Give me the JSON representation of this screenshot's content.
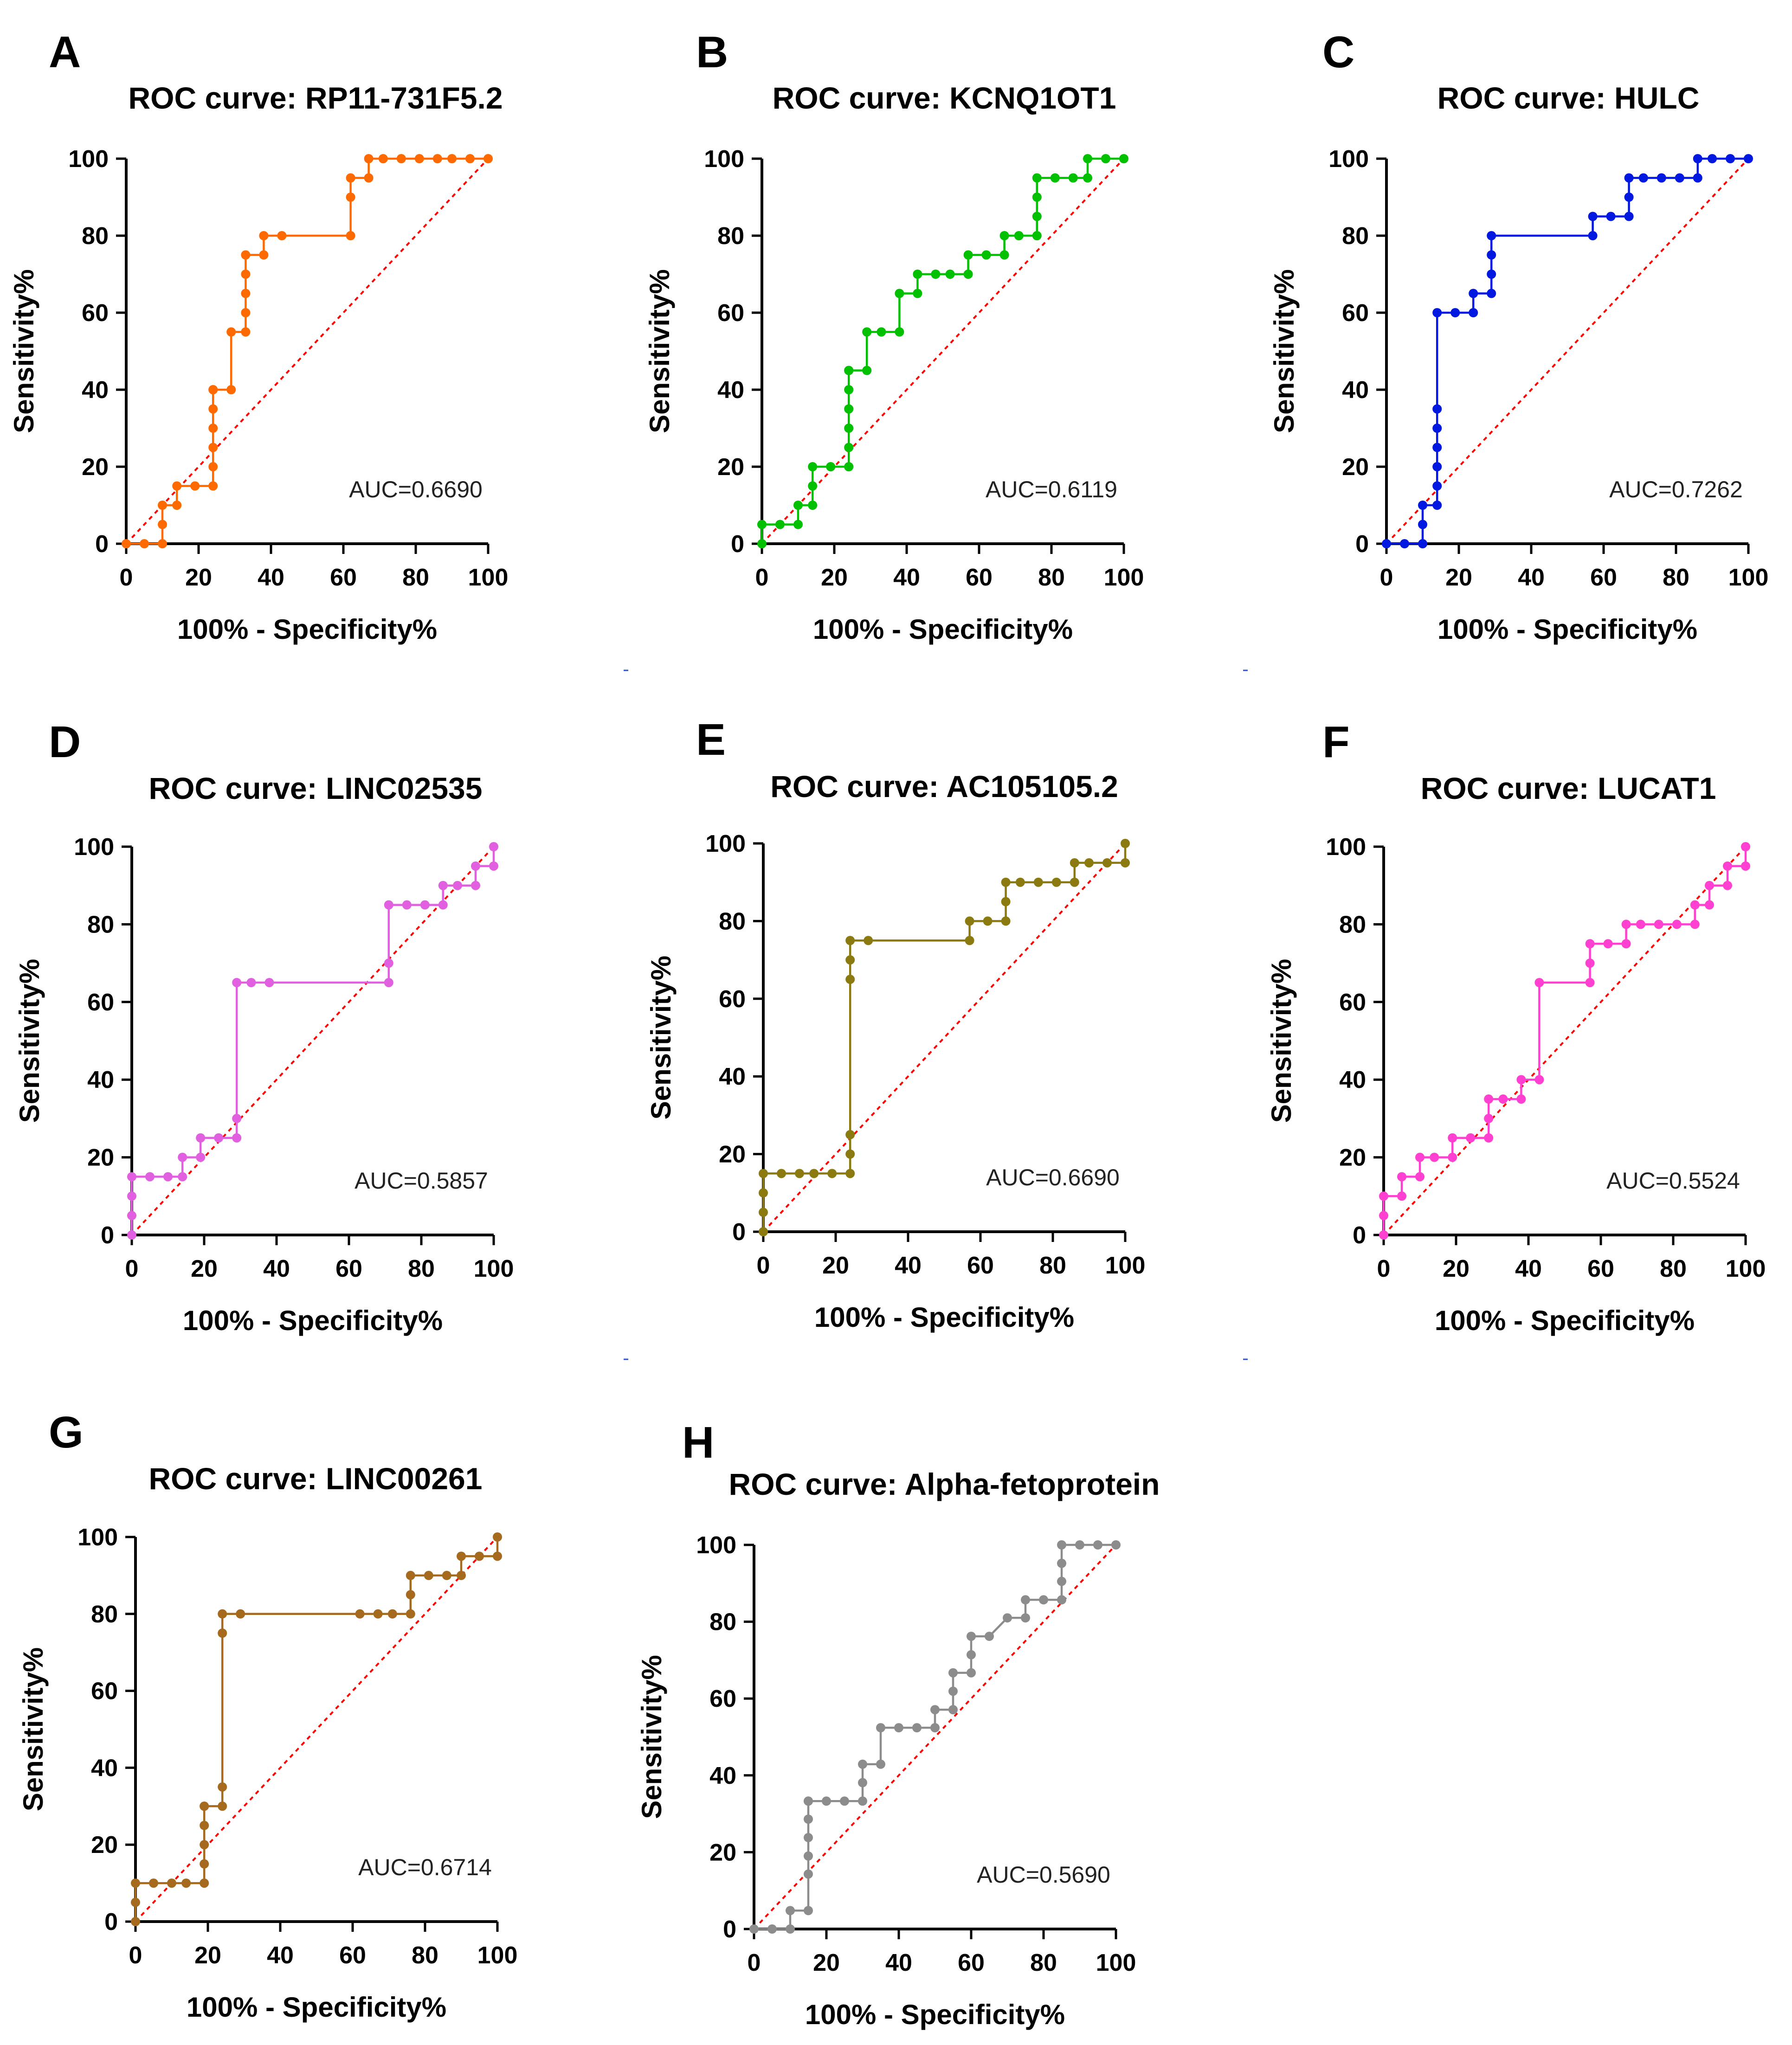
{
  "figure": {
    "x_axis_label": "100% - Specificity%",
    "y_axis_label": "Sensitivity%",
    "ticks": [
      "0",
      "20",
      "40",
      "60",
      "80",
      "100"
    ]
  },
  "chart_data": [
    {
      "type": "line",
      "panel": "A",
      "title": "ROC curve: RP11-731F5.2",
      "auc_label": "AUC=0.6690",
      "color": "#FF6A00",
      "xlabel": "100% - Specificity%",
      "ylabel": "Sensitivity%",
      "xlim": [
        0,
        100
      ],
      "ylim": [
        0,
        100
      ],
      "reference_line": {
        "color": "#FF0000",
        "style": "dotted",
        "from": [
          0,
          0
        ],
        "to": [
          100,
          100
        ]
      },
      "series": [
        {
          "name": "RP11-731F5.2",
          "x": [
            0,
            5,
            10,
            10,
            10,
            14,
            14,
            19,
            24,
            24,
            24,
            24,
            24,
            24,
            24,
            29,
            29,
            33,
            33,
            33,
            33,
            33,
            38,
            38,
            43,
            62,
            62,
            62,
            67,
            67,
            71,
            76,
            81,
            86,
            90,
            95,
            100
          ],
          "y": [
            0,
            0,
            0,
            5,
            10,
            10,
            15,
            15,
            15,
            20,
            25,
            30,
            35,
            40,
            40,
            40,
            55,
            55,
            60,
            65,
            70,
            75,
            75,
            80,
            80,
            80,
            90,
            95,
            95,
            100,
            100,
            100,
            100,
            100,
            100,
            100,
            100
          ]
        }
      ]
    },
    {
      "type": "line",
      "panel": "B",
      "title": "ROC curve: KCNQ1OT1",
      "auc_label": "AUC=0.6119",
      "color": "#00C000",
      "xlabel": "100% - Specificity%",
      "ylabel": "Sensitivity%",
      "xlim": [
        0,
        100
      ],
      "ylim": [
        0,
        100
      ],
      "reference_line": {
        "color": "#FF0000",
        "style": "dotted",
        "from": [
          0,
          0
        ],
        "to": [
          100,
          100
        ]
      },
      "series": [
        {
          "name": "KCNQ1OT1",
          "x": [
            0,
            0,
            5,
            10,
            10,
            14,
            14,
            14,
            19,
            24,
            24,
            24,
            24,
            24,
            24,
            24,
            29,
            29,
            33,
            38,
            38,
            43,
            43,
            48,
            52,
            57,
            57,
            62,
            67,
            67,
            71,
            76,
            76,
            76,
            76,
            81,
            86,
            90,
            90,
            95,
            100
          ],
          "y": [
            0,
            5,
            5,
            5,
            10,
            10,
            15,
            20,
            20,
            20,
            25,
            30,
            35,
            40,
            45,
            45,
            45,
            55,
            55,
            55,
            65,
            65,
            70,
            70,
            70,
            70,
            75,
            75,
            75,
            80,
            80,
            80,
            85,
            90,
            95,
            95,
            95,
            95,
            100,
            100,
            100
          ]
        }
      ]
    },
    {
      "type": "line",
      "panel": "C",
      "title": "ROC curve: HULC",
      "auc_label": "AUC=0.7262",
      "color": "#0018E0",
      "xlabel": "100% - Specificity%",
      "ylabel": "Sensitivity%",
      "xlim": [
        0,
        100
      ],
      "ylim": [
        0,
        100
      ],
      "reference_line": {
        "color": "#FF0000",
        "style": "dotted",
        "from": [
          0,
          0
        ],
        "to": [
          100,
          100
        ]
      },
      "series": [
        {
          "name": "HULC",
          "x": [
            0,
            5,
            10,
            10,
            10,
            14,
            14,
            14,
            14,
            14,
            14,
            14,
            19,
            24,
            24,
            29,
            29,
            29,
            29,
            57,
            57,
            62,
            67,
            67,
            67,
            71,
            76,
            81,
            86,
            86,
            90,
            95,
            100
          ],
          "y": [
            0,
            0,
            0,
            5,
            10,
            10,
            15,
            20,
            25,
            30,
            35,
            60,
            60,
            60,
            65,
            65,
            70,
            75,
            80,
            80,
            85,
            85,
            85,
            90,
            95,
            95,
            95,
            95,
            95,
            100,
            100,
            100,
            100
          ]
        }
      ]
    },
    {
      "type": "line",
      "panel": "D",
      "title": "ROC curve: LINC02535",
      "auc_label": "AUC=0.5857",
      "color": "#E060E0",
      "xlabel": "100% - Specificity%",
      "ylabel": "Sensitivity%",
      "xlim": [
        0,
        100
      ],
      "ylim": [
        0,
        100
      ],
      "reference_line": {
        "color": "#FF0000",
        "style": "dotted",
        "from": [
          0,
          0
        ],
        "to": [
          100,
          100
        ]
      },
      "series": [
        {
          "name": "LINC02535",
          "x": [
            0,
            0,
            0,
            0,
            5,
            10,
            14,
            14,
            19,
            19,
            24,
            29,
            29,
            29,
            33,
            38,
            71,
            71,
            71,
            76,
            81,
            86,
            86,
            90,
            95,
            95,
            100,
            100
          ],
          "y": [
            0,
            5,
            10,
            15,
            15,
            15,
            15,
            20,
            20,
            25,
            25,
            25,
            30,
            65,
            65,
            65,
            65,
            70,
            85,
            85,
            85,
            85,
            90,
            90,
            90,
            95,
            95,
            100
          ]
        }
      ]
    },
    {
      "type": "line",
      "panel": "E",
      "title": "ROC curve: AC105105.2",
      "auc_label": "AUC=0.6690",
      "color": "#8A7A10",
      "xlabel": "100% - Specificity%",
      "ylabel": "Sensitivity%",
      "xlim": [
        0,
        100
      ],
      "ylim": [
        0,
        100
      ],
      "reference_line": {
        "color": "#FF0000",
        "style": "dotted",
        "from": [
          0,
          0
        ],
        "to": [
          100,
          100
        ]
      },
      "series": [
        {
          "name": "AC105105.2",
          "x": [
            0,
            0,
            0,
            0,
            5,
            10,
            14,
            19,
            24,
            24,
            24,
            24,
            24,
            24,
            29,
            57,
            57,
            62,
            67,
            67,
            67,
            71,
            76,
            81,
            86,
            86,
            90,
            95,
            100,
            100
          ],
          "y": [
            0,
            5,
            10,
            15,
            15,
            15,
            15,
            15,
            15,
            20,
            25,
            65,
            70,
            75,
            75,
            75,
            80,
            80,
            80,
            85,
            90,
            90,
            90,
            90,
            90,
            95,
            95,
            95,
            95,
            100
          ]
        }
      ]
    },
    {
      "type": "line",
      "panel": "F",
      "title": "ROC curve: LUCAT1",
      "auc_label": "AUC=0.5524",
      "color": "#FF40D0",
      "xlabel": "100% - Specificity%",
      "ylabel": "Sensitivity%",
      "xlim": [
        0,
        100
      ],
      "ylim": [
        0,
        100
      ],
      "reference_line": {
        "color": "#FF0000",
        "style": "dotted",
        "from": [
          0,
          0
        ],
        "to": [
          100,
          100
        ]
      },
      "series": [
        {
          "name": "LUCAT1",
          "x": [
            0,
            0,
            0,
            5,
            5,
            10,
            10,
            14,
            19,
            19,
            24,
            29,
            29,
            29,
            33,
            38,
            38,
            43,
            43,
            57,
            57,
            57,
            62,
            67,
            67,
            71,
            76,
            81,
            86,
            86,
            90,
            90,
            95,
            95,
            100,
            100
          ],
          "y": [
            0,
            5,
            10,
            10,
            15,
            15,
            20,
            20,
            20,
            25,
            25,
            25,
            30,
            35,
            35,
            35,
            40,
            40,
            65,
            65,
            70,
            75,
            75,
            75,
            80,
            80,
            80,
            80,
            80,
            85,
            85,
            90,
            90,
            95,
            95,
            100
          ]
        }
      ]
    },
    {
      "type": "line",
      "panel": "G",
      "title": "ROC curve: LINC00261",
      "auc_label": "AUC=0.6714",
      "color": "#A56A1E",
      "xlabel": "100% - Specificity%",
      "ylabel": "Sensitivity%",
      "xlim": [
        0,
        100
      ],
      "ylim": [
        0,
        100
      ],
      "reference_line": {
        "color": "#FF0000",
        "style": "dotted",
        "from": [
          0,
          0
        ],
        "to": [
          100,
          100
        ]
      },
      "series": [
        {
          "name": "LINC00261",
          "x": [
            0,
            0,
            0,
            5,
            10,
            14,
            19,
            19,
            19,
            19,
            19,
            19,
            24,
            24,
            24,
            24,
            29,
            62,
            67,
            71,
            76,
            76,
            76,
            81,
            86,
            90,
            90,
            95,
            100,
            100
          ],
          "y": [
            0,
            5,
            10,
            10,
            10,
            10,
            10,
            15,
            20,
            25,
            30,
            30,
            30,
            35,
            75,
            80,
            80,
            80,
            80,
            80,
            80,
            85,
            90,
            90,
            90,
            90,
            95,
            95,
            95,
            100
          ]
        }
      ]
    },
    {
      "type": "line",
      "panel": "H",
      "title": "ROC curve: Alpha-fetoprotein",
      "auc_label": "AUC=0.5690",
      "color": "#8C8C8C",
      "xlabel": "100% - Specificity%",
      "ylabel": "Sensitivity%",
      "xlim": [
        0,
        100
      ],
      "ylim": [
        0,
        100
      ],
      "reference_line": {
        "color": "#FF0000",
        "style": "dotted",
        "from": [
          0,
          0
        ],
        "to": [
          100,
          100
        ]
      },
      "series": [
        {
          "name": "Alpha-fetoprotein",
          "x": [
            0,
            5,
            10,
            10,
            15,
            15,
            15,
            15,
            15,
            15,
            15,
            20,
            25,
            30,
            30,
            30,
            35,
            35,
            40,
            45,
            50,
            50,
            55,
            55,
            55,
            60,
            60,
            60,
            65,
            70,
            75,
            75,
            80,
            85,
            85,
            85,
            85,
            90,
            95,
            100
          ],
          "y": [
            0,
            0,
            0,
            4.8,
            4.8,
            14.3,
            19,
            23.8,
            28.6,
            33.3,
            33.3,
            33.3,
            33.3,
            33.3,
            38.1,
            42.9,
            42.9,
            52.4,
            52.4,
            52.4,
            52.4,
            57.1,
            57.1,
            61.9,
            66.7,
            66.7,
            71.4,
            76.2,
            76.2,
            81,
            81,
            85.7,
            85.7,
            85.7,
            90.5,
            95.2,
            100,
            100,
            100,
            100
          ]
        }
      ]
    }
  ]
}
